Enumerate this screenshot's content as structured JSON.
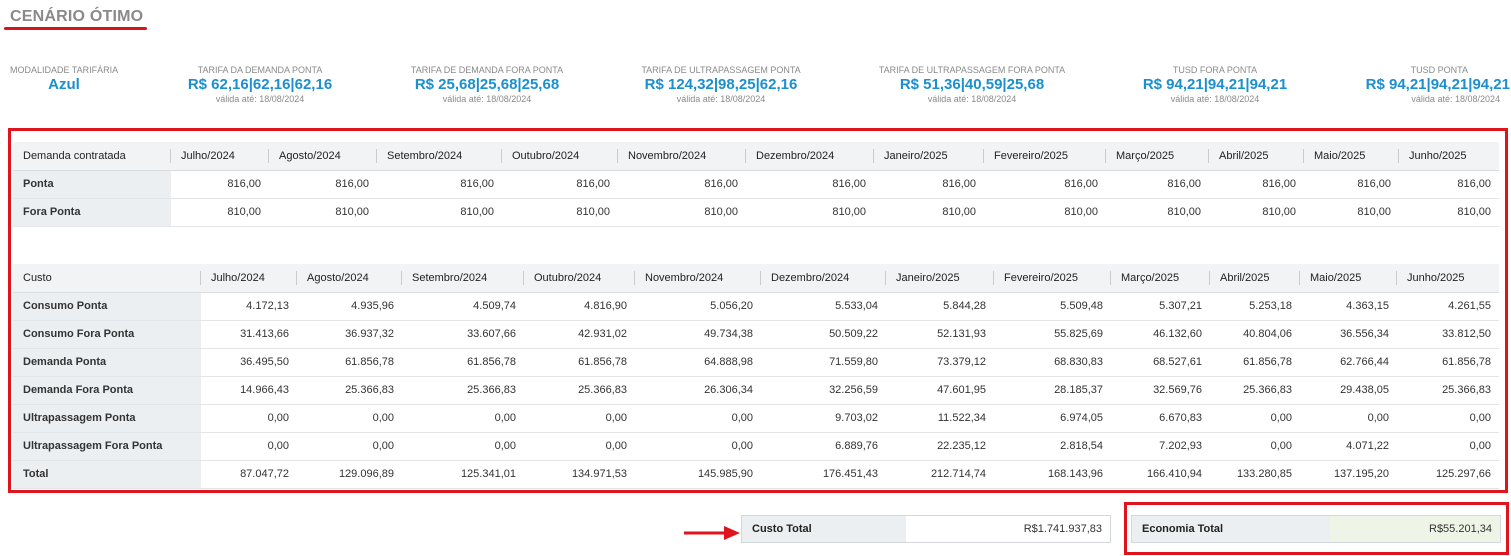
{
  "title": "CENÁRIO ÓTIMO",
  "tariffs": [
    {
      "label": "MODALIDADE TARIFÁRIA",
      "value": "Azul",
      "valid": ""
    },
    {
      "label": "TARIFA DA DEMANDA PONTA",
      "value": "R$ 62,16|62,16|62,16",
      "valid": "válida até: 18/08/2024"
    },
    {
      "label": "TARIFA DE DEMANDA FORA PONTA",
      "value": "R$ 25,68|25,68|25,68",
      "valid": "válida até: 18/08/2024"
    },
    {
      "label": "TARIFA DE ULTRAPASSAGEM PONTA",
      "value": "R$ 124,32|98,25|62,16",
      "valid": "válida até: 18/08/2024"
    },
    {
      "label": "TARIFA DE ULTRAPASSAGEM FORA PONTA",
      "value": "R$ 51,36|40,59|25,68",
      "valid": "válida até: 18/08/2024"
    },
    {
      "label": "TUSD FORA PONTA",
      "value": "R$ 94,21|94,21|94,21",
      "valid": "válida até: 18/08/2024"
    },
    {
      "label": "TUSD PONTA",
      "value": "R$ 94,21|94,21|94,21",
      "valid": "válida até: 18/08/2024"
    }
  ],
  "demanda": {
    "header": "Demanda contratada",
    "months": [
      "Julho/2024",
      "Agosto/2024",
      "Setembro/2024",
      "Outubro/2024",
      "Novembro/2024",
      "Dezembro/2024",
      "Janeiro/2025",
      "Fevereiro/2025",
      "Março/2025",
      "Abril/2025",
      "Maio/2025",
      "Junho/2025"
    ],
    "rows": [
      {
        "label": "Ponta",
        "values": [
          "816,00",
          "816,00",
          "816,00",
          "816,00",
          "816,00",
          "816,00",
          "816,00",
          "816,00",
          "816,00",
          "816,00",
          "816,00",
          "816,00"
        ]
      },
      {
        "label": "Fora Ponta",
        "values": [
          "810,00",
          "810,00",
          "810,00",
          "810,00",
          "810,00",
          "810,00",
          "810,00",
          "810,00",
          "810,00",
          "810,00",
          "810,00",
          "810,00"
        ]
      }
    ]
  },
  "custo": {
    "header": "Custo",
    "months": [
      "Julho/2024",
      "Agosto/2024",
      "Setembro/2024",
      "Outubro/2024",
      "Novembro/2024",
      "Dezembro/2024",
      "Janeiro/2025",
      "Fevereiro/2025",
      "Março/2025",
      "Abril/2025",
      "Maio/2025",
      "Junho/2025"
    ],
    "rows": [
      {
        "label": "Consumo Ponta",
        "values": [
          "4.172,13",
          "4.935,96",
          "4.509,74",
          "4.816,90",
          "5.056,20",
          "5.533,04",
          "5.844,28",
          "5.509,48",
          "5.307,21",
          "5.253,18",
          "4.363,15",
          "4.261,55"
        ]
      },
      {
        "label": "Consumo Fora Ponta",
        "values": [
          "31.413,66",
          "36.937,32",
          "33.607,66",
          "42.931,02",
          "49.734,38",
          "50.509,22",
          "52.131,93",
          "55.825,69",
          "46.132,60",
          "40.804,06",
          "36.556,34",
          "33.812,50"
        ]
      },
      {
        "label": "Demanda Ponta",
        "values": [
          "36.495,50",
          "61.856,78",
          "61.856,78",
          "61.856,78",
          "64.888,98",
          "71.559,80",
          "73.379,12",
          "68.830,83",
          "68.527,61",
          "61.856,78",
          "62.766,44",
          "61.856,78"
        ]
      },
      {
        "label": "Demanda Fora Ponta",
        "values": [
          "14.966,43",
          "25.366,83",
          "25.366,83",
          "25.366,83",
          "26.306,34",
          "32.256,59",
          "47.601,95",
          "28.185,37",
          "32.569,76",
          "25.366,83",
          "29.438,05",
          "25.366,83"
        ]
      },
      {
        "label": "Ultrapassagem Ponta",
        "values": [
          "0,00",
          "0,00",
          "0,00",
          "0,00",
          "0,00",
          "9.703,02",
          "11.522,34",
          "6.974,05",
          "6.670,83",
          "0,00",
          "0,00",
          "0,00"
        ]
      },
      {
        "label": "Ultrapassagem Fora Ponta",
        "values": [
          "0,00",
          "0,00",
          "0,00",
          "0,00",
          "0,00",
          "6.889,76",
          "22.235,12",
          "2.818,54",
          "7.202,93",
          "0,00",
          "4.071,22",
          "0,00"
        ]
      },
      {
        "label": "Total",
        "values": [
          "87.047,72",
          "129.096,89",
          "125.341,01",
          "134.971,53",
          "145.985,90",
          "176.451,43",
          "212.714,74",
          "168.143,96",
          "166.410,94",
          "133.280,85",
          "137.195,20",
          "125.297,66"
        ]
      }
    ]
  },
  "summary": {
    "custo_total_label": "Custo Total",
    "custo_total_value": "R$1.741.937,83",
    "economia_total_label": "Economia Total",
    "economia_total_value": "R$55.201,34"
  },
  "colors": {
    "accent": "#1b8fcf",
    "highlight": "#e0141c",
    "economia_bg": "#eef5e6"
  }
}
